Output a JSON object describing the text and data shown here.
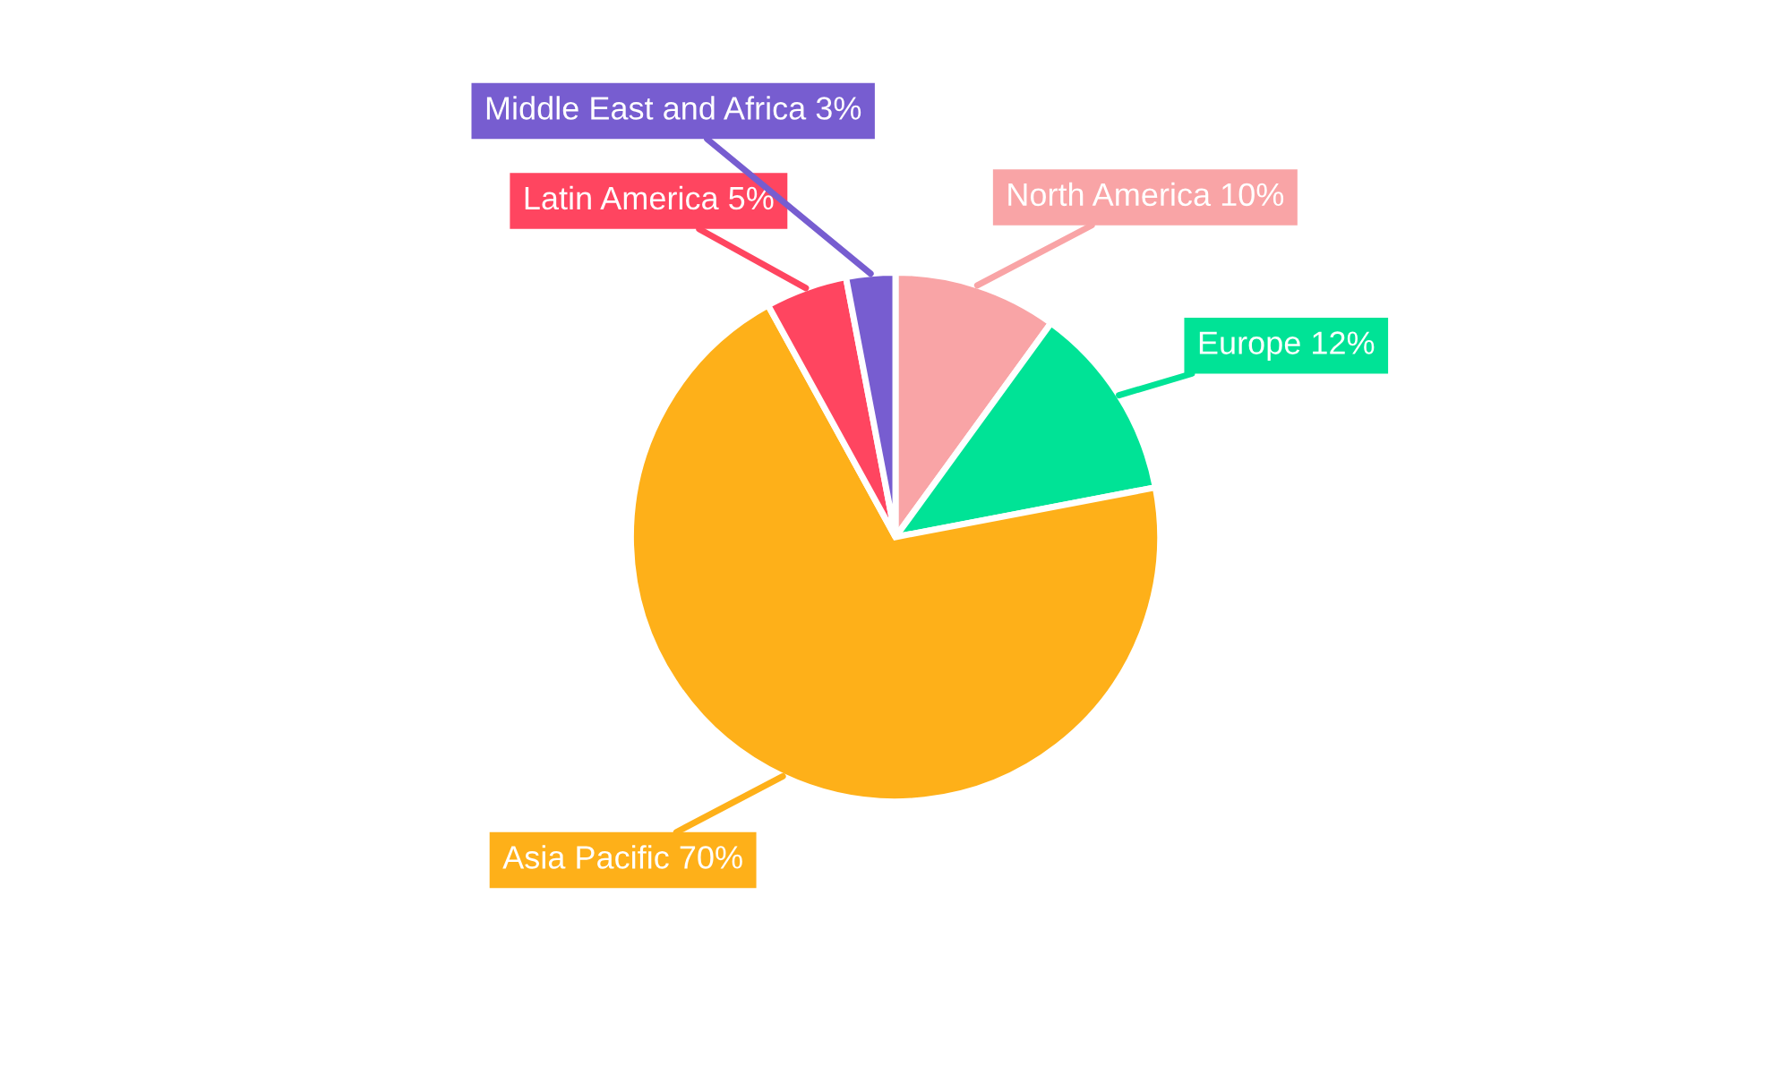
{
  "chart_data": {
    "type": "pie",
    "categories": [
      "North America",
      "Europe",
      "Asia Pacific",
      "Latin America",
      "Middle East and Africa"
    ],
    "values": [
      10,
      12,
      70,
      5,
      3
    ],
    "value_labels": [
      "10%",
      "12%",
      "70%",
      "5%",
      "3%"
    ],
    "colors": [
      "#f9a4a6",
      "#00e396",
      "#feb019",
      "#ff4560",
      "#775dd0"
    ]
  }
}
